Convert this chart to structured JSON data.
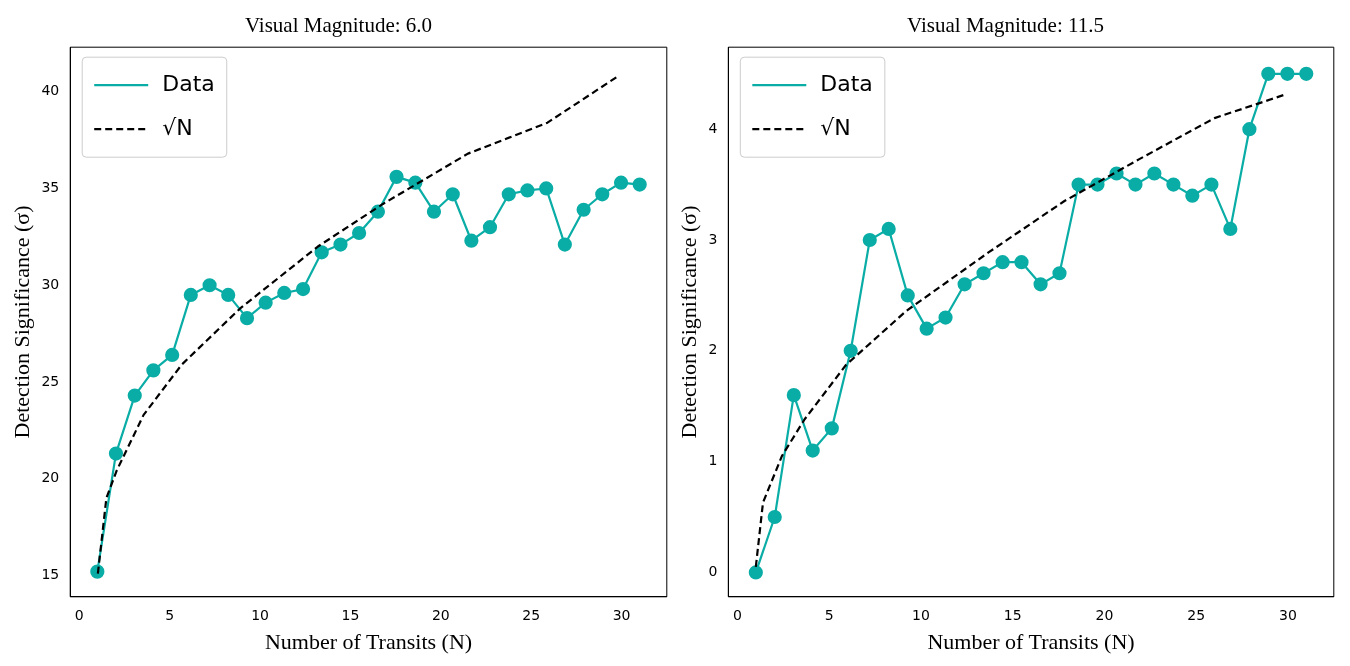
{
  "chart_data": [
    {
      "type": "line",
      "title": "Visual Magnitude: 6.0",
      "xlabel": "Number of Transits (N)",
      "ylabel": "Detection Significance (σ)",
      "xlim": [
        -0.5,
        32.5
      ],
      "xticks": [
        0,
        5,
        10,
        15,
        20,
        25,
        30
      ],
      "ylim": [
        13.9,
        42.3
      ],
      "yticks": [
        15,
        20,
        25,
        30,
        35,
        40
      ],
      "grid": false,
      "legend": "top left",
      "series": [
        {
          "name": "Data",
          "type": "line",
          "color": "#0aada6",
          "marker": "circle",
          "line_style": "solid",
          "x": [
            1,
            2.03,
            3.07,
            4.1,
            5.14,
            6.17,
            7.21,
            8.24,
            9.28,
            10.31,
            11.34,
            12.38,
            13.41,
            14.45,
            15.48,
            16.52,
            17.55,
            18.59,
            19.62,
            20.66,
            21.69,
            22.72,
            23.76,
            24.79,
            25.83,
            26.86,
            27.9,
            28.93,
            29.97,
            31
          ],
          "values": [
            15.2,
            21.3,
            24.3,
            25.6,
            26.4,
            29.5,
            30.0,
            29.5,
            28.3,
            29.1,
            29.6,
            29.8,
            31.7,
            32.1,
            32.7,
            33.8,
            35.6,
            35.3,
            33.8,
            34.7,
            32.3,
            33.0,
            34.7,
            34.9,
            35.0,
            32.1,
            33.9,
            34.7,
            35.3,
            35.2
          ]
        },
        {
          "name": "√N",
          "type": "line",
          "color": "#000000",
          "marker": "none",
          "line_style": "dashed",
          "x": [
            1.03,
            1.5,
            2.06,
            3.56,
            5.67,
            8.9,
            13.2,
            16.8,
            21.5,
            25.9,
            29.8
          ],
          "values": [
            15.1,
            19.0,
            20.4,
            23.3,
            25.9,
            28.8,
            32.0,
            34.2,
            36.8,
            38.4,
            40.8
          ]
        }
      ]
    },
    {
      "type": "line",
      "title": "Visual Magnitude: 11.5",
      "xlabel": "Number of Transits (N)",
      "ylabel": "Detection Significance (σ)",
      "xlim": [
        -0.5,
        32.5
      ],
      "xticks": [
        0,
        5,
        10,
        15,
        20,
        25,
        30
      ],
      "ylim": [
        -0.22,
        4.74
      ],
      "yticks": [
        0,
        1,
        2,
        3,
        4
      ],
      "grid": false,
      "legend": "top left",
      "series": [
        {
          "name": "Data",
          "type": "line",
          "color": "#0aada6",
          "marker": "circle",
          "line_style": "solid",
          "x": [
            1,
            2.03,
            3.07,
            4.1,
            5.14,
            6.17,
            7.21,
            8.24,
            9.28,
            10.31,
            11.34,
            12.38,
            13.41,
            14.45,
            15.48,
            16.52,
            17.55,
            18.59,
            19.62,
            20.66,
            21.69,
            22.72,
            23.76,
            24.79,
            25.83,
            26.86,
            27.9,
            28.93,
            29.97,
            31
          ],
          "values": [
            0,
            0.5,
            1.6,
            1.1,
            1.3,
            2.0,
            3.0,
            3.1,
            2.5,
            2.2,
            2.3,
            2.6,
            2.7,
            2.8,
            2.8,
            2.6,
            2.7,
            3.5,
            3.5,
            3.6,
            3.5,
            3.6,
            3.5,
            3.4,
            3.5,
            3.1,
            4.0,
            4.5,
            4.5,
            4.5
          ]
        },
        {
          "name": "√N",
          "type": "line",
          "color": "#000000",
          "marker": "none",
          "line_style": "dashed",
          "x": [
            1,
            1.39,
            2.42,
            3.65,
            5.9,
            9.2,
            13.7,
            17.8,
            21.9,
            26.0,
            29.8
          ],
          "values": [
            0.05,
            0.63,
            1.05,
            1.38,
            1.87,
            2.36,
            2.89,
            3.35,
            3.73,
            4.1,
            4.31
          ]
        }
      ]
    }
  ]
}
